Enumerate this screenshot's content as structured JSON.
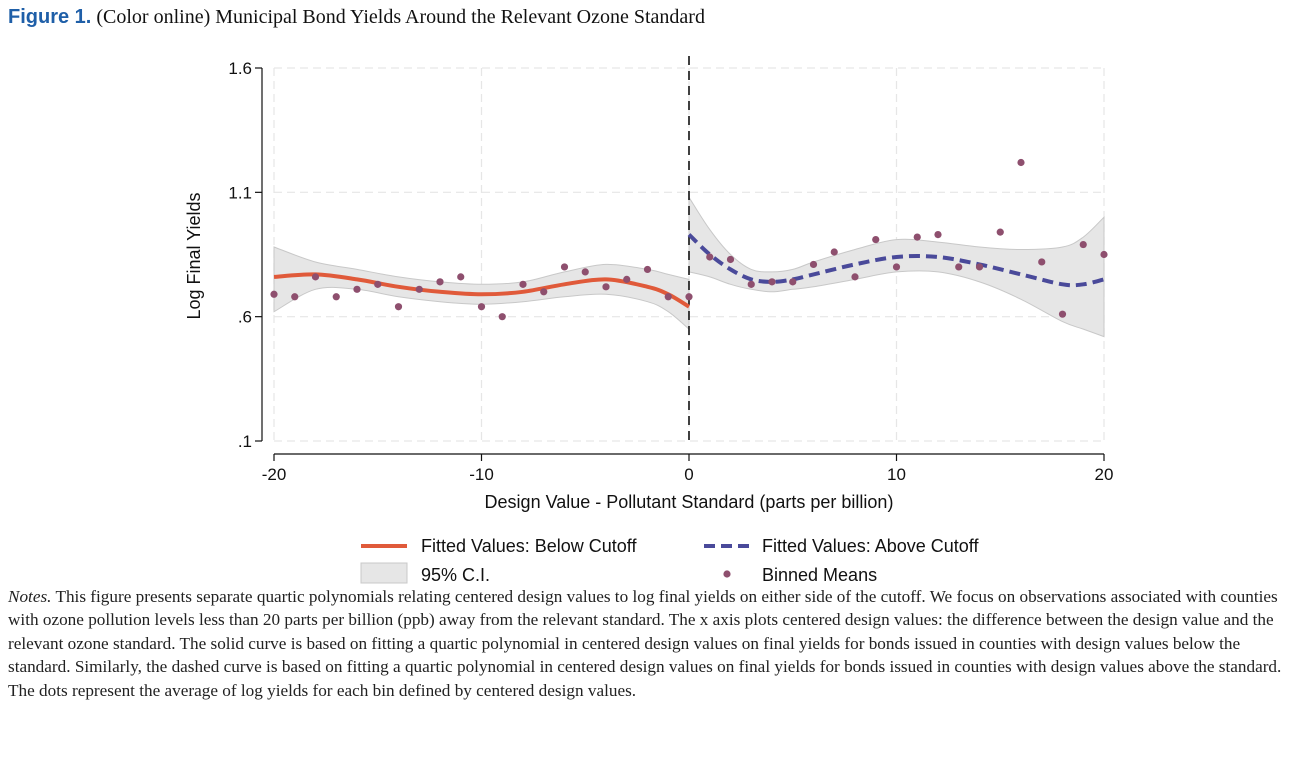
{
  "figure": {
    "label": "Figure 1.",
    "caption": "(Color online) Municipal Bond Yields Around the Relevant Ozone Standard"
  },
  "notes": {
    "label": "Notes.",
    "text": "This figure presents separate quartic polynomials relating centered design values to log final yields on either side of the cutoff. We focus on observations associated with counties with ozone pollution levels less than 20 parts per billion (ppb) away from the relevant standard. The x axis plots centered design values: the difference between the design value and the relevant ozone standard. The solid curve is based on fitting a quartic polynomial in centered design values on final yields for bonds issued in counties with design values below the standard. Similarly, the dashed curve is based on fitting a quartic polynomial in centered design values on final yields for bonds issued in counties with design values above the standard. The dots represent the average of log yields for each bin defined by centered design values."
  },
  "chart_data": {
    "type": "scatter",
    "xlabel": "Design Value - Pollutant Standard (parts per billion)",
    "ylabel": "Log Final Yields",
    "xlim": [
      -20,
      20
    ],
    "ylim": [
      0.1,
      1.6
    ],
    "x_ticks": [
      -20,
      -10,
      0,
      10,
      20
    ],
    "x_tick_labels": [
      "-20",
      "-10",
      "0",
      "10",
      "20"
    ],
    "y_ticks": [
      0.1,
      0.6,
      1.1,
      1.6
    ],
    "y_tick_labels": [
      ".1",
      ".6",
      "1.1",
      "1.6"
    ],
    "grid": true,
    "cutoff_x": 0,
    "legend_position": "bottom",
    "colors": {
      "below_fit": "#e05a3a",
      "above_fit": "#4a4a9a",
      "ci_fill": "#e6e6e6",
      "ci_stroke": "#c8c8c8",
      "dots": "#8e4f6e",
      "grid": "#e6e6e6",
      "cutoff": "#111111"
    },
    "series": [
      {
        "name": "Fitted Values: Below Cutoff",
        "style": "solid",
        "x": [
          -20,
          -18,
          -16,
          -14,
          -12,
          -10,
          -8,
          -6,
          -4,
          -2,
          -1,
          0
        ],
        "y": [
          0.76,
          0.77,
          0.75,
          0.72,
          0.7,
          0.69,
          0.7,
          0.73,
          0.75,
          0.72,
          0.69,
          0.64
        ]
      },
      {
        "name": "Fitted Values: Above Cutoff",
        "style": "dashed",
        "x": [
          0,
          1,
          2,
          3,
          4,
          5,
          6,
          8,
          10,
          12,
          14,
          16,
          18,
          19,
          20
        ],
        "y": [
          0.93,
          0.85,
          0.79,
          0.75,
          0.74,
          0.75,
          0.77,
          0.81,
          0.84,
          0.84,
          0.81,
          0.77,
          0.73,
          0.73,
          0.75
        ]
      },
      {
        "name": "95% C.I.",
        "style": "band",
        "x": [
          -20,
          -18,
          -16,
          -14,
          -12,
          -10,
          -8,
          -6,
          -4,
          -2,
          -1,
          0
        ],
        "upper": [
          0.88,
          0.82,
          0.79,
          0.76,
          0.74,
          0.73,
          0.74,
          0.78,
          0.81,
          0.79,
          0.77,
          0.75
        ],
        "lower": [
          0.62,
          0.71,
          0.71,
          0.68,
          0.66,
          0.65,
          0.66,
          0.68,
          0.69,
          0.66,
          0.62,
          0.55
        ]
      },
      {
        "name": "95% C.I. (above)",
        "style": "band",
        "x": [
          0,
          1,
          2,
          3,
          4,
          5,
          6,
          8,
          10,
          12,
          14,
          16,
          18,
          19,
          20
        ],
        "upper": [
          1.08,
          0.95,
          0.85,
          0.79,
          0.78,
          0.79,
          0.82,
          0.87,
          0.91,
          0.9,
          0.88,
          0.87,
          0.88,
          0.92,
          1.0
        ],
        "lower": [
          0.78,
          0.76,
          0.73,
          0.71,
          0.7,
          0.71,
          0.72,
          0.75,
          0.78,
          0.78,
          0.74,
          0.67,
          0.58,
          0.55,
          0.52
        ]
      },
      {
        "name": "Binned Means",
        "style": "dots",
        "x": [
          -20,
          -19,
          -18,
          -17,
          -16,
          -15,
          -14,
          -13,
          -12,
          -11,
          -10,
          -9,
          -8,
          -7,
          -6,
          -5,
          -4,
          -3,
          -2,
          -1,
          0,
          1,
          2,
          3,
          4,
          5,
          6,
          7,
          8,
          9,
          10,
          11,
          12,
          13,
          14,
          15,
          16,
          17,
          18,
          19,
          20
        ],
        "y": [
          0.69,
          0.68,
          0.76,
          0.68,
          0.71,
          0.73,
          0.64,
          0.71,
          0.74,
          0.76,
          0.64,
          0.6,
          0.73,
          0.7,
          0.8,
          0.78,
          0.72,
          0.75,
          0.79,
          0.68,
          0.68,
          0.84,
          0.83,
          0.73,
          0.74,
          0.74,
          0.81,
          0.86,
          0.76,
          0.91,
          0.8,
          0.92,
          0.93,
          0.8,
          0.8,
          0.94,
          1.22,
          0.82,
          0.61,
          0.89,
          0.85
        ]
      }
    ],
    "legend": [
      {
        "label": "Fitted Values: Below Cutoff",
        "symbol": "solid-line"
      },
      {
        "label": "Fitted Values: Above Cutoff",
        "symbol": "dashed-line"
      },
      {
        "label": "95% C.I.",
        "symbol": "shaded-box"
      },
      {
        "label": "Binned Means",
        "symbol": "dot"
      }
    ]
  }
}
